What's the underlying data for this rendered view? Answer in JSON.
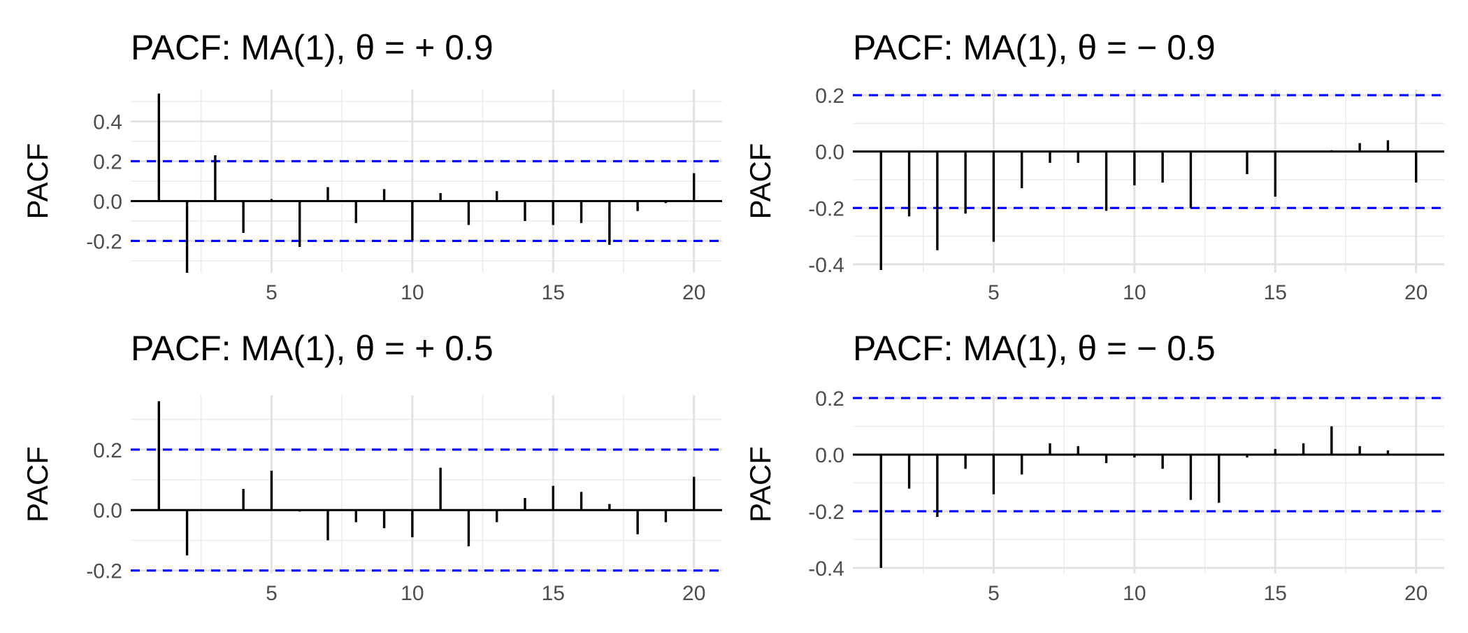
{
  "chart_data": [
    {
      "type": "bar",
      "title": "PACF: MA(1), θ = + 0.9",
      "xlabel": "",
      "ylabel": "PACF",
      "xlim": [
        0,
        21
      ],
      "ylim": [
        -0.36,
        0.56
      ],
      "xticks": [
        5,
        10,
        15,
        20
      ],
      "yticks": [
        -0.2,
        0.0,
        0.2,
        0.4
      ],
      "ytick_labels": [
        "-0.2",
        "0.0",
        "0.2",
        "0.4"
      ],
      "grid": true,
      "confidence_bounds": [
        -0.2,
        0.2
      ],
      "confidence_color": "#0000ff",
      "bar_color": "#000000",
      "lags": [
        1,
        2,
        3,
        4,
        5,
        6,
        7,
        8,
        9,
        10,
        11,
        12,
        13,
        14,
        15,
        16,
        17,
        18,
        19,
        20
      ],
      "values": [
        0.54,
        -0.36,
        0.23,
        -0.16,
        0.01,
        -0.23,
        0.07,
        -0.11,
        0.06,
        -0.2,
        0.04,
        -0.12,
        0.05,
        -0.1,
        -0.12,
        -0.11,
        -0.22,
        -0.05,
        -0.01,
        0.14
      ]
    },
    {
      "type": "bar",
      "title": "PACF: MA(1), θ = − 0.9",
      "xlabel": "",
      "ylabel": "PACF",
      "xlim": [
        0,
        21
      ],
      "ylim": [
        -0.43,
        0.22
      ],
      "xticks": [
        5,
        10,
        15,
        20
      ],
      "yticks": [
        -0.4,
        -0.2,
        0.0,
        0.2
      ],
      "ytick_labels": [
        "-0.4",
        "-0.2",
        "0.0",
        "0.2"
      ],
      "grid": true,
      "confidence_bounds": [
        -0.2,
        0.2
      ],
      "confidence_color": "#0000ff",
      "bar_color": "#000000",
      "lags": [
        1,
        2,
        3,
        4,
        5,
        6,
        7,
        8,
        9,
        10,
        11,
        12,
        13,
        14,
        15,
        16,
        17,
        18,
        19,
        20
      ],
      "values": [
        -0.42,
        -0.23,
        -0.35,
        -0.22,
        -0.32,
        -0.13,
        -0.04,
        -0.04,
        -0.21,
        -0.12,
        -0.11,
        -0.2,
        0.0,
        -0.08,
        -0.16,
        0.0,
        0.005,
        0.03,
        0.04,
        -0.11
      ]
    },
    {
      "type": "bar",
      "title": "PACF: MA(1), θ = + 0.5",
      "xlabel": "",
      "ylabel": "PACF",
      "xlim": [
        0,
        21
      ],
      "ylim": [
        -0.21,
        0.38
      ],
      "xticks": [
        5,
        10,
        15,
        20
      ],
      "yticks": [
        -0.2,
        0.0,
        0.2
      ],
      "ytick_labels": [
        "-0.2",
        "0.0",
        "0.2"
      ],
      "grid": true,
      "confidence_bounds": [
        -0.2,
        0.2
      ],
      "confidence_color": "#0000ff",
      "bar_color": "#000000",
      "lags": [
        1,
        2,
        3,
        4,
        5,
        6,
        7,
        8,
        9,
        10,
        11,
        12,
        13,
        14,
        15,
        16,
        17,
        18,
        19,
        20
      ],
      "values": [
        0.36,
        -0.15,
        0.0,
        0.07,
        0.13,
        -0.005,
        -0.1,
        -0.04,
        -0.06,
        -0.09,
        0.14,
        -0.12,
        -0.04,
        0.04,
        0.08,
        0.06,
        0.02,
        -0.08,
        -0.04,
        0.11
      ]
    },
    {
      "type": "bar",
      "title": "PACF: MA(1), θ = − 0.5",
      "xlabel": "",
      "ylabel": "PACF",
      "xlim": [
        0,
        21
      ],
      "ylim": [
        -0.42,
        0.21
      ],
      "xticks": [
        5,
        10,
        15,
        20
      ],
      "yticks": [
        -0.4,
        -0.2,
        0.0,
        0.2
      ],
      "ytick_labels": [
        "-0.4",
        "-0.2",
        "0.0",
        "0.2"
      ],
      "grid": true,
      "confidence_bounds": [
        -0.2,
        0.2
      ],
      "confidence_color": "#0000ff",
      "bar_color": "#000000",
      "lags": [
        1,
        2,
        3,
        4,
        5,
        6,
        7,
        8,
        9,
        10,
        11,
        12,
        13,
        14,
        15,
        16,
        17,
        18,
        19,
        20
      ],
      "values": [
        -0.4,
        -0.12,
        -0.22,
        -0.05,
        -0.14,
        -0.07,
        0.04,
        0.03,
        -0.03,
        -0.01,
        -0.05,
        -0.16,
        -0.17,
        -0.01,
        0.02,
        0.04,
        0.1,
        0.03,
        0.015,
        0.0
      ]
    }
  ]
}
